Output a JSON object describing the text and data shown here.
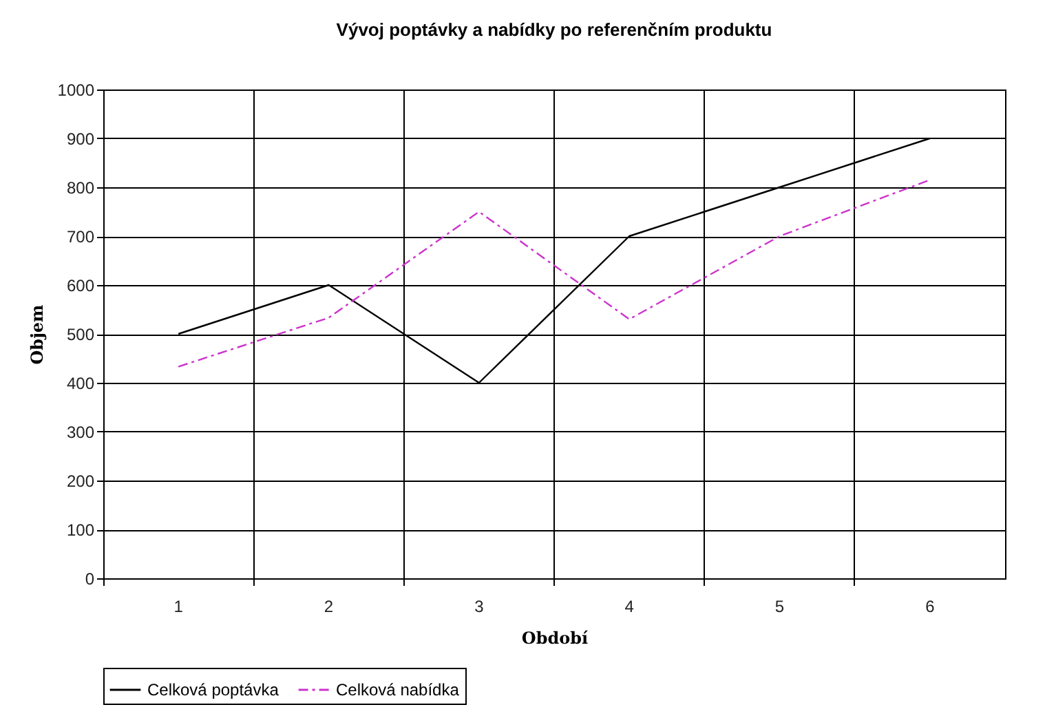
{
  "chart_data": {
    "type": "line",
    "title": "Vývoj poptávky a nabídky po referenčním produktu",
    "xlabel": "Období",
    "ylabel": "Objem",
    "categories": [
      "1",
      "2",
      "3",
      "4",
      "5",
      "6"
    ],
    "series": [
      {
        "name": "Celková poptávka",
        "color": "#000000",
        "line_style": "solid",
        "values": [
          500,
          600,
          400,
          700,
          800,
          900
        ]
      },
      {
        "name": "Celková nabídka",
        "color": "#cc33cc",
        "line_style": "dashed",
        "values": [
          433,
          533,
          750,
          530,
          700,
          815
        ]
      }
    ],
    "ylim": [
      0,
      1000
    ],
    "yticks": [
      0,
      100,
      200,
      300,
      400,
      500,
      600,
      700,
      800,
      900,
      1000
    ],
    "grid": true,
    "legend": "bottom",
    "marker": "none"
  }
}
